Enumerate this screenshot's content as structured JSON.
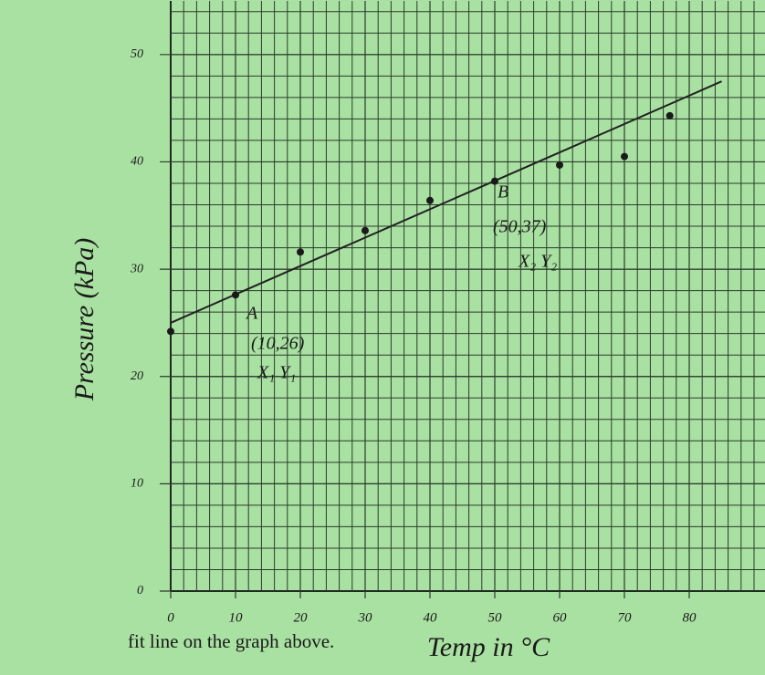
{
  "chart_data": {
    "type": "scatter",
    "x_label": "Temp in °C",
    "y_label": "Pressure (kPa)",
    "x": [
      0,
      10,
      20,
      30,
      40,
      50,
      60,
      70,
      77
    ],
    "values": [
      24.2,
      27.6,
      31.6,
      33.6,
      36.4,
      38.2,
      39.7,
      40.5,
      44.3
    ],
    "color": "#1a1a1a",
    "fit_line": {
      "x": [
        0,
        85
      ],
      "values": [
        25,
        47.5
      ]
    },
    "xlim": [
      0,
      90
    ],
    "ylim": [
      0,
      55
    ],
    "xticks": [
      0,
      10,
      20,
      30,
      40,
      50,
      60,
      70,
      80
    ],
    "yticks": [
      0,
      10,
      20,
      30,
      40,
      50
    ],
    "grid": true,
    "annotations": [
      "A",
      "(10,26)",
      "X₁ Y₁",
      "B",
      "(50,37)",
      "X₂ Y₂"
    ],
    "caption": "fit line on the graph above."
  }
}
